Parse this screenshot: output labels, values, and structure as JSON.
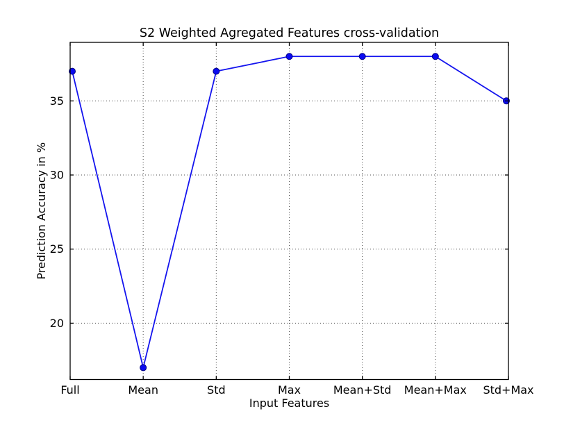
{
  "figure": {
    "background": "#ffffff"
  },
  "chart_data": {
    "type": "line",
    "title": "S2 Weighted Agregated Features cross-validation",
    "xlabel": "Input Features",
    "ylabel": "Prediction Accuracy in %",
    "categories": [
      "Full",
      "Mean",
      "Std",
      "Max",
      "Mean+Std",
      "Mean+Max",
      "Std+Max"
    ],
    "values": [
      37,
      17,
      37,
      38,
      38,
      38,
      35
    ],
    "yticks": [
      20,
      25,
      30,
      35
    ],
    "ylim": [
      16.2,
      38.95
    ],
    "grid": "dotted",
    "legend": "none",
    "line_color": "#1414ee",
    "marker": "circle",
    "marker_color": "#0a0af0",
    "marker_edge_color": "#000080",
    "grid_color": "#4d4d4d",
    "axis_color": "#000000"
  }
}
